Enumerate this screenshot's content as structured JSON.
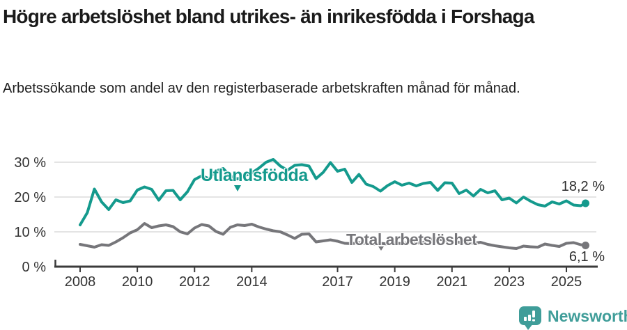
{
  "header": {
    "title": "Högre arbetslöshet bland utrikes- än inrikesfödda i Forshaga",
    "subtitle": "Arbetssökande som andel av den registerbaserade arbetskraften månad för månad."
  },
  "chart_data": {
    "type": "line",
    "unit": "%",
    "grid": "horizontal",
    "legend_position": "inline-labels",
    "ylim": [
      0,
      32
    ],
    "xlim": [
      2008,
      2025.75
    ],
    "yticks": [
      0,
      10,
      20,
      30
    ],
    "ytick_labels": [
      "0 %",
      "10 %",
      "20 %",
      "30 %"
    ],
    "xticks": [
      2008,
      2010,
      2012,
      2014,
      2017,
      2019,
      2021,
      2023,
      2025
    ],
    "xtick_labels": [
      "2008",
      "2010",
      "2012",
      "2014",
      "2017",
      "2019",
      "2021",
      "2023",
      "2025"
    ],
    "x": [
      2008.0,
      2008.25,
      2008.5,
      2008.75,
      2009.0,
      2009.25,
      2009.5,
      2009.75,
      2010.0,
      2010.25,
      2010.5,
      2010.75,
      2011.0,
      2011.25,
      2011.5,
      2011.75,
      2012.0,
      2012.25,
      2012.5,
      2012.75,
      2013.0,
      2013.25,
      2013.5,
      2013.75,
      2014.0,
      2014.25,
      2014.5,
      2014.75,
      2015.0,
      2015.25,
      2015.5,
      2015.75,
      2016.0,
      2016.25,
      2016.5,
      2016.75,
      2017.0,
      2017.25,
      2017.5,
      2017.75,
      2018.0,
      2018.25,
      2018.5,
      2018.75,
      2019.0,
      2019.25,
      2019.5,
      2019.75,
      2020.0,
      2020.25,
      2020.5,
      2020.75,
      2021.0,
      2021.25,
      2021.5,
      2021.75,
      2022.0,
      2022.25,
      2022.5,
      2022.75,
      2023.0,
      2023.25,
      2023.5,
      2023.75,
      2024.0,
      2024.25,
      2024.5,
      2024.75,
      2025.0,
      2025.25,
      2025.5,
      2025.67
    ],
    "series": [
      {
        "name": "Utlandsfödda",
        "color": "#149a8d",
        "end_label": "18,2 %",
        "end_value": 18.2,
        "values": [
          12.0,
          15.5,
          22.3,
          18.6,
          16.4,
          19.2,
          18.4,
          18.9,
          22.0,
          22.9,
          22.2,
          19.1,
          21.8,
          21.9,
          19.2,
          21.5,
          25.0,
          26.1,
          25.3,
          27.5,
          28.2,
          26.0,
          25.2,
          26.1,
          26.9,
          28.3,
          30.0,
          30.8,
          28.9,
          27.7,
          29.1,
          29.3,
          28.9,
          25.3,
          27.1,
          29.9,
          27.4,
          28.0,
          24.2,
          26.5,
          23.7,
          23.0,
          21.7,
          23.3,
          24.4,
          23.4,
          24.0,
          23.2,
          23.9,
          24.2,
          21.9,
          24.1,
          24.0,
          21.0,
          22.0,
          20.3,
          22.2,
          21.2,
          21.8,
          19.2,
          19.7,
          18.3,
          20.0,
          18.8,
          17.8,
          17.4,
          18.6,
          18.0,
          18.9,
          17.7,
          17.5,
          18.2
        ]
      },
      {
        "name": "Total arbetslöshet",
        "color": "#76767a",
        "end_label": "6,1 %",
        "end_value": 6.1,
        "values": [
          6.4,
          6.0,
          5.6,
          6.3,
          6.1,
          7.1,
          8.3,
          9.7,
          10.6,
          12.4,
          11.2,
          11.7,
          12.0,
          11.5,
          10.0,
          9.4,
          11.1,
          12.1,
          11.7,
          10.1,
          9.3,
          11.3,
          12.0,
          11.8,
          12.2,
          11.4,
          10.8,
          10.3,
          10.0,
          9.1,
          8.1,
          9.3,
          9.4,
          7.1,
          7.4,
          7.7,
          7.3,
          6.7,
          6.6,
          6.9,
          6.6,
          6.4,
          6.7,
          6.5,
          6.8,
          6.6,
          6.9,
          6.7,
          7.0,
          7.9,
          8.0,
          7.6,
          7.3,
          7.0,
          6.8,
          6.7,
          7.0,
          6.4,
          6.0,
          5.7,
          5.4,
          5.2,
          5.9,
          5.7,
          5.6,
          6.5,
          6.1,
          5.8,
          6.7,
          6.9,
          6.3,
          6.1
        ]
      }
    ]
  },
  "footer": {
    "brand": "Newsworthy",
    "brand_color": "#3f9d99"
  },
  "colors": {
    "axis": "#3b3b3b",
    "gridline": "#dcdcdc",
    "tick_text": "#333333"
  }
}
